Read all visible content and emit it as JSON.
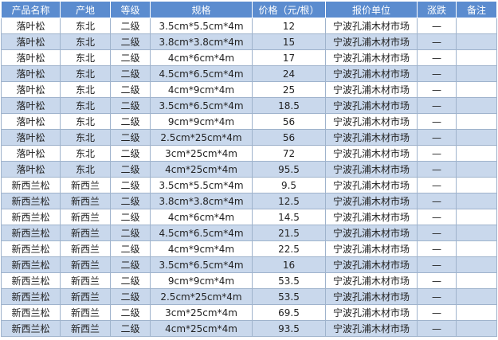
{
  "table": {
    "header": [
      "产品名称",
      "产地",
      "等级",
      "规格",
      "价格（元/根）",
      "报价单位",
      "涨跌",
      "备注"
    ],
    "rows": [
      [
        "落叶松",
        "东北",
        "二级",
        "3.5cm*5.5cm*4m",
        12,
        "宁波孔浦木材市场",
        "—"
      ],
      [
        "落叶松",
        "东北",
        "二级",
        "3.8cm*3.8cm*4m",
        15,
        "宁波孔浦木材市场",
        "—"
      ],
      [
        "落叶松",
        "东北",
        "二级",
        "4cm*6cm*4m",
        17,
        "宁波孔浦木材市场",
        "—"
      ],
      [
        "落叶松",
        "东北",
        "二级",
        "4.5cm*6.5cm*4m",
        24,
        "宁波孔浦木材市场",
        "—"
      ],
      [
        "落叶松",
        "东北",
        "二级",
        "4cm*9cm*4m",
        25,
        "宁波孔浦木材市场",
        "—"
      ],
      [
        "落叶松",
        "东北",
        "二级",
        "3.5cm*6.5cm*4m",
        18.5,
        "宁波孔浦木材市场",
        "—"
      ],
      [
        "落叶松",
        "东北",
        "二级",
        "9cm*9cm*4m",
        56,
        "宁波孔浦木材市场",
        "—"
      ],
      [
        "落叶松",
        "东北",
        "二级",
        "2.5cm*25cm*4m",
        56,
        "宁波孔浦木材市场",
        "—"
      ],
      [
        "落叶松",
        "东北",
        "二级",
        "3cm*25cm*4m",
        72,
        "宁波孔浦木材市场",
        "—"
      ],
      [
        "落叶松",
        "东北",
        "二级",
        "4cm*25cm*4m",
        95.5,
        "宁波孔浦木材市场",
        "—"
      ],
      [
        "新西兰松",
        "新西兰",
        "二级",
        "3.5cm*5.5cm*4m",
        9.5,
        "宁波孔浦木材市场",
        "—"
      ],
      [
        "新西兰松",
        "新西兰",
        "二级",
        "3.8cm*3.8cm*4m",
        12.5,
        "宁波孔浦木材市场",
        "—"
      ],
      [
        "新西兰松",
        "新西兰",
        "二级",
        "4cm*6cm*4m",
        14.5,
        "宁波孔浦木材市场",
        "—"
      ],
      [
        "新西兰松",
        "新西兰",
        "二级",
        "4.5cm*6.5cm*4m",
        21.5,
        "宁波孔浦木材市场",
        "—"
      ],
      [
        "新西兰松",
        "新西兰",
        "二级",
        "4cm*9cm*4m",
        22.5,
        "宁波孔浦木材市场",
        "—"
      ],
      [
        "新西兰松",
        "新西兰",
        "二级",
        "3.5cm*6.5cm*4m",
        16,
        "宁波孔浦木材市场",
        "—"
      ],
      [
        "新西兰松",
        "新西兰",
        "二级",
        "9cm*9cm*4m",
        53.5,
        "宁波孔浦木材市场",
        "—"
      ],
      [
        "新西兰松",
        "新西兰",
        "二级",
        "2.5cm*25cm*4m",
        53.5,
        "宁波孔浦木材市场",
        "—"
      ],
      [
        "新西兰松",
        "新西兰",
        "二级",
        "3cm*25cm*4m",
        69.5,
        "宁波孔浦木材市场",
        "—"
      ],
      [
        "新西兰松",
        "新西兰",
        "二级",
        "4cm*25cm*4m",
        93.5,
        "宁波孔浦木材市场",
        "—"
      ]
    ]
  }
}
